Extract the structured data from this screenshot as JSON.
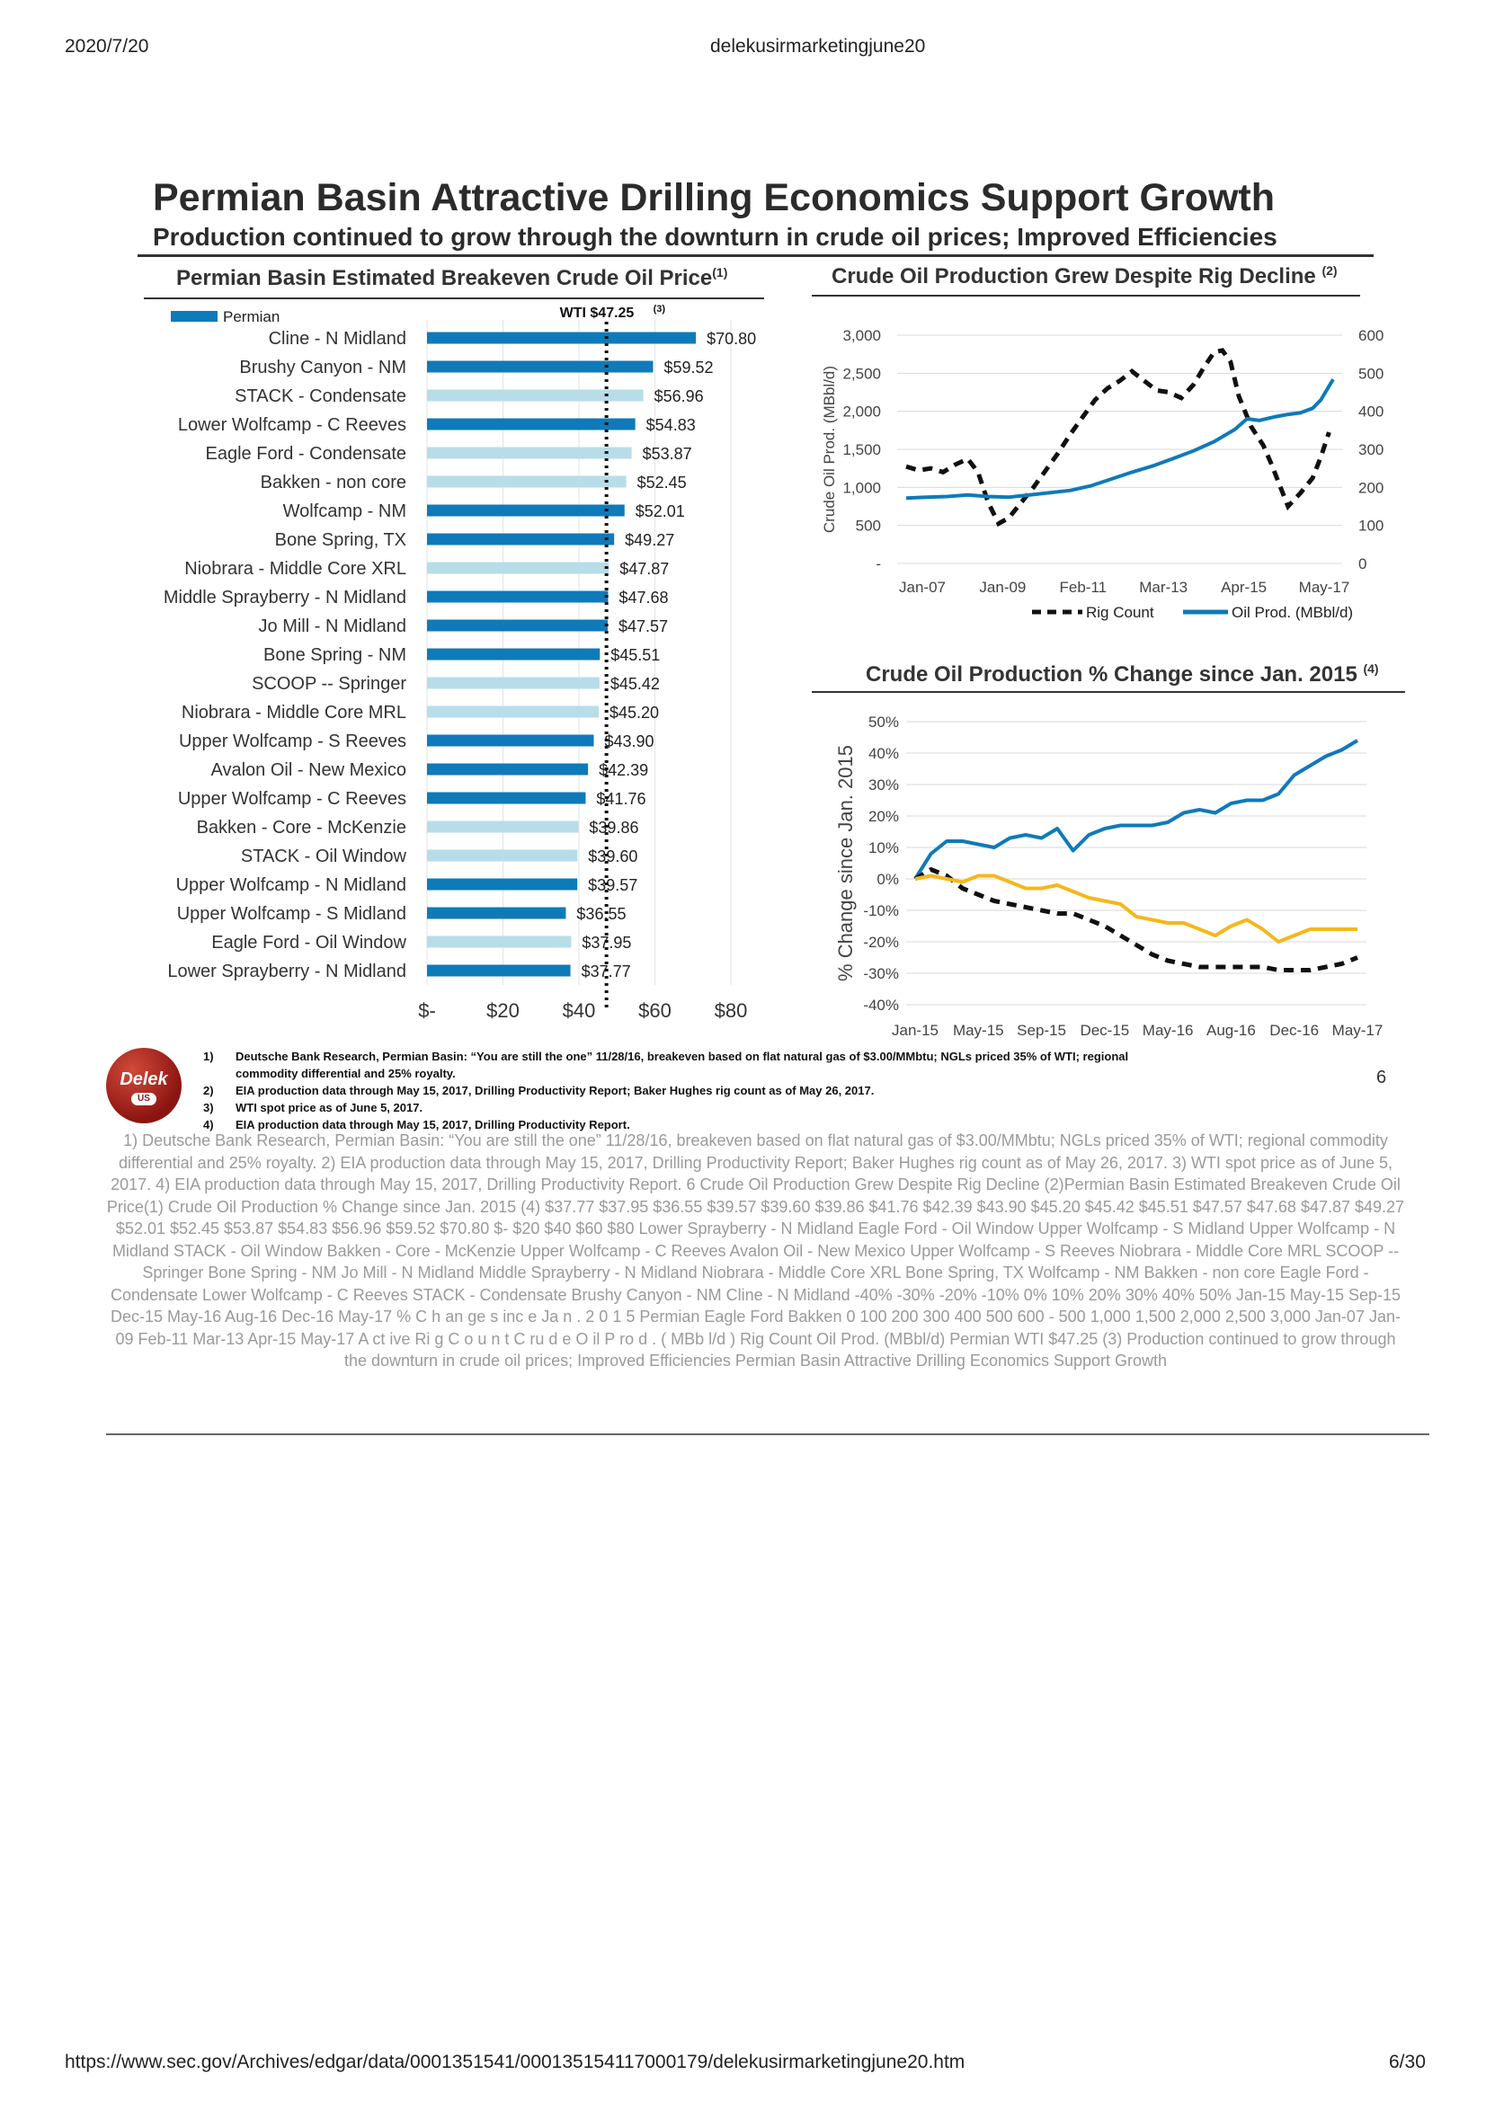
{
  "header": {
    "date": "2020/7/20",
    "doc_title": "delekusirmarketingjune20",
    "url": "https://www.sec.gov/Archives/edgar/data/0001351541/000135154117000179/delekusirmarketingjune20.htm",
    "page": "6/30"
  },
  "slide": {
    "title": "Permian Basin Attractive Drilling Economics Support Growth",
    "subtitle": "Production continued to grow through the downturn in crude oil prices; Improved Efficiencies",
    "page_number": "6",
    "logo_text": "Delek",
    "logo_badge": "US"
  },
  "colors": {
    "permian": "#0f7ab9",
    "other": "#b7dde9",
    "bakken": "#f3b81b",
    "black": "#111111",
    "grid": "#d9d9d9"
  },
  "chart_data": [
    {
      "type": "bar",
      "orientation": "horizontal",
      "title": "Permian Basin Estimated Breakeven Crude Oil Price",
      "title_sup": "(1)",
      "legend": "Permian",
      "reference_line": {
        "label": "WTI $47.25",
        "sup": "(3)",
        "value": 47.25
      },
      "xlim": [
        0,
        80
      ],
      "xticks": [
        "$-",
        "$20",
        "$40",
        "$60",
        "$80"
      ],
      "categories": [
        "Cline - N Midland",
        "Brushy Canyon - NM",
        "STACK - Condensate",
        "Lower Wolfcamp - C Reeves",
        "Eagle Ford - Condensate",
        "Bakken - non core",
        "Wolfcamp - NM",
        "Bone Spring, TX",
        "Niobrara - Middle Core XRL",
        "Middle Sprayberry - N Midland",
        "Jo Mill - N Midland",
        "Bone Spring - NM",
        "SCOOP -- Springer",
        "Niobrara - Middle Core MRL",
        "Upper Wolfcamp - S Reeves",
        "Avalon Oil - New Mexico",
        "Upper Wolfcamp - C Reeves",
        "Bakken - Core - McKenzie",
        "STACK - Oil Window",
        "Upper Wolfcamp - N Midland",
        "Upper Wolfcamp - S Midland",
        "Eagle Ford  - Oil Window",
        "Lower Sprayberry - N Midland"
      ],
      "values": [
        70.8,
        59.52,
        56.96,
        54.83,
        53.87,
        52.45,
        52.01,
        49.27,
        47.87,
        47.68,
        47.57,
        45.51,
        45.42,
        45.2,
        43.9,
        42.39,
        41.76,
        39.86,
        39.6,
        39.57,
        36.55,
        37.95,
        37.77
      ],
      "labels": [
        "$70.80",
        "$59.52",
        "$56.96",
        "$54.83",
        "$53.87",
        "$52.45",
        "$52.01",
        "$49.27",
        "$47.87",
        "$47.68",
        "$47.57",
        "$45.51",
        "$45.42",
        "$45.20",
        "$43.90",
        "$42.39",
        "$41.76",
        "$39.86",
        "$39.60",
        "$39.57",
        "$36.55",
        "$37.95",
        "$37.77"
      ],
      "is_permian": [
        true,
        true,
        false,
        true,
        false,
        false,
        true,
        true,
        false,
        true,
        true,
        true,
        false,
        false,
        true,
        true,
        true,
        false,
        false,
        true,
        true,
        false,
        true
      ]
    },
    {
      "type": "line",
      "title": "Crude Oil Production Grew Despite Rig Decline",
      "title_sup": "(2)",
      "ylabel": "Crude Oil Prod. (MBbl/d)",
      "y2label": "Active Rig Count",
      "xticks": [
        "Jan-07",
        "Jan-09",
        "Feb-11",
        "Mar-13",
        "Apr-15",
        "May-17"
      ],
      "yticks": [
        "-",
        "500",
        "1,000",
        "1,500",
        "2,000",
        "2,500",
        "3,000"
      ],
      "y2ticks": [
        "0",
        "100",
        "200",
        "300",
        "400",
        "500",
        "600"
      ],
      "ylim": [
        0,
        3000
      ],
      "y2lim": [
        0,
        600
      ],
      "xlim": [
        2007.0,
        2017.4
      ],
      "series": [
        {
          "name": "Rig Count",
          "axis": "right",
          "style": "dashed",
          "x": [
            2007.0,
            2007.3,
            2007.6,
            2007.9,
            2008.2,
            2008.5,
            2008.75,
            2009.0,
            2009.25,
            2009.5,
            2009.8,
            2010.1,
            2010.4,
            2010.7,
            2011.0,
            2011.3,
            2011.6,
            2011.9,
            2012.2,
            2012.5,
            2012.8,
            2013.1,
            2013.4,
            2013.7,
            2014.0,
            2014.25,
            2014.5,
            2014.7,
            2014.9,
            2015.1,
            2015.4,
            2015.7,
            2015.9,
            2016.1,
            2016.3,
            2016.6,
            2016.9,
            2017.1,
            2017.3
          ],
          "y": [
            255,
            245,
            250,
            240,
            260,
            275,
            240,
            160,
            105,
            120,
            160,
            200,
            245,
            290,
            340,
            385,
            430,
            460,
            480,
            505,
            480,
            455,
            450,
            435,
            470,
            515,
            555,
            560,
            530,
            440,
            360,
            310,
            260,
            205,
            150,
            185,
            225,
            280,
            345
          ]
        },
        {
          "name": "Oil Prod. (MBbl/d)",
          "axis": "left",
          "style": "solid",
          "x": [
            2007.0,
            2007.5,
            2008.0,
            2008.5,
            2009.0,
            2009.5,
            2010.0,
            2010.5,
            2011.0,
            2011.5,
            2012.0,
            2012.5,
            2013.0,
            2013.5,
            2014.0,
            2014.5,
            2015.0,
            2015.3,
            2015.6,
            2016.0,
            2016.3,
            2016.6,
            2016.9,
            2017.1,
            2017.3,
            2017.4
          ],
          "y": [
            860,
            870,
            880,
            900,
            880,
            870,
            900,
            930,
            960,
            1020,
            1110,
            1200,
            1280,
            1380,
            1480,
            1600,
            1760,
            1900,
            1880,
            1930,
            1960,
            1980,
            2040,
            2150,
            2330,
            2420
          ]
        }
      ]
    },
    {
      "type": "line",
      "title": "Crude Oil Production % Change since Jan. 2015",
      "title_sup": "(4)",
      "ylabel": "% Change since Jan. 2015",
      "xticks": [
        "Jan-15",
        "May-15",
        "Sep-15",
        "Dec-15",
        "May-16",
        "Aug-16",
        "Dec-16",
        "May-17"
      ],
      "yticks": [
        "-40%",
        "-30%",
        "-20%",
        "-10%",
        "0%",
        "10%",
        "20%",
        "30%",
        "40%",
        "50%"
      ],
      "ylim": [
        -40,
        50
      ],
      "xlim": [
        0,
        28
      ],
      "series": [
        {
          "name": "Permian",
          "style": "solid",
          "x": [
            0,
            1,
            2,
            3,
            4,
            5,
            6,
            7,
            8,
            9,
            10,
            11,
            12,
            13,
            14,
            15,
            16,
            17,
            18,
            19,
            20,
            21,
            22,
            23,
            24,
            25,
            26,
            27,
            28
          ],
          "y": [
            0,
            8,
            12,
            12,
            11,
            10,
            13,
            14,
            13,
            16,
            9,
            14,
            16,
            17,
            17,
            17,
            18,
            21,
            22,
            21,
            24,
            25,
            25,
            27,
            33,
            36,
            39,
            41,
            44
          ]
        },
        {
          "name": "Eagle Ford",
          "style": "dashed",
          "x": [
            0,
            1,
            2,
            3,
            4,
            5,
            6,
            7,
            8,
            9,
            10,
            11,
            12,
            13,
            14,
            15,
            16,
            17,
            18,
            19,
            20,
            21,
            22,
            23,
            24,
            25,
            26,
            27,
            28
          ],
          "y": [
            0,
            3,
            1,
            -3,
            -5,
            -7,
            -8,
            -9,
            -10,
            -11,
            -11,
            -13,
            -15,
            -18,
            -21,
            -24,
            -26,
            -27,
            -28,
            -28,
            -28,
            -28,
            -28,
            -29,
            -29,
            -29,
            -28,
            -27,
            -25
          ]
        },
        {
          "name": "Bakken",
          "style": "solid",
          "x": [
            0,
            1,
            2,
            3,
            4,
            5,
            6,
            7,
            8,
            9,
            10,
            11,
            12,
            13,
            14,
            15,
            16,
            17,
            18,
            19,
            20,
            21,
            22,
            23,
            24,
            25,
            26,
            27,
            28
          ],
          "y": [
            0,
            1,
            0,
            -1,
            1,
            1,
            -1,
            -3,
            -3,
            -2,
            -4,
            -6,
            -7,
            -8,
            -12,
            -13,
            -14,
            -14,
            -16,
            -18,
            -15,
            -13,
            -16,
            -20,
            -18,
            -16,
            -16,
            -16,
            -16
          ]
        }
      ]
    }
  ],
  "footnotes": [
    {
      "num": "1)",
      "text": "Deutsche Bank Research, Permian Basin: “You are still the one” 11/28/16, breakeven based on flat natural gas of $3.00/MMbtu; NGLs priced 35% of WTI; regional"
    },
    {
      "num": "",
      "text": "commodity differential and 25% royalty."
    },
    {
      "num": "2)",
      "text": "EIA production data through May 15, 2017, Drilling Productivity Report; Baker Hughes rig count as of May 26, 2017."
    },
    {
      "num": "3)",
      "text": "WTI spot price as of June 5, 2017."
    },
    {
      "num": "4)",
      "text": "EIA production data through May 15, 2017, Drilling Productivity Report."
    }
  ],
  "extracted_text": "1) Deutsche Bank Research, Permian Basin: “You are still the one” 11/28/16, breakeven based on flat natural gas of $3.00/MMbtu; NGLs priced 35% of WTI; regional commodity differential and 25% royalty. 2) EIA production data through May 15, 2017, Drilling Productivity Report; Baker Hughes rig count as of May 26, 2017. 3) WTI spot price as of June 5, 2017. 4) EIA production data through May 15, 2017, Drilling Productivity Report. 6 Crude Oil Production Grew Despite Rig Decline (2)Permian Basin Estimated Breakeven Crude Oil Price(1) Crude Oil Production % Change since Jan. 2015 (4) $37.77 $37.95 $36.55 $39.57 $39.60 $39.86 $41.76 $42.39 $43.90 $45.20 $45.42 $45.51 $47.57 $47.68 $47.87 $49.27 $52.01 $52.45 $53.87 $54.83 $56.96 $59.52 $70.80 $- $20 $40 $60 $80 Lower Sprayberry - N Midland Eagle Ford - Oil Window Upper Wolfcamp - S Midland Upper Wolfcamp - N Midland STACK - Oil Window Bakken - Core - McKenzie Upper Wolfcamp - C Reeves Avalon Oil - New Mexico Upper Wolfcamp - S Reeves Niobrara - Middle Core MRL SCOOP -- Springer Bone Spring - NM Jo Mill - N Midland Middle Sprayberry - N Midland Niobrara - Middle Core XRL Bone Spring, TX Wolfcamp - NM Bakken - non core Eagle Ford - Condensate Lower Wolfcamp - C Reeves STACK - Condensate Brushy Canyon - NM Cline - N Midland -40% -30% -20% -10% 0% 10% 20% 30% 40% 50% Jan-15 May-15 Sep-15 Dec-15 May-16 Aug-16 Dec-16 May-17 % C h an ge s inc e Ja n . 2 0 1 5 Permian Eagle Ford Bakken 0 100 200 300 400 500 600 - 500 1,000 1,500 2,000 2,500 3,000 Jan-07 Jan-09 Feb-11 Mar-13 Apr-15 May-17 A ct ive Ri g C o u n t C ru d e O il P ro d . ( MBb l/d ) Rig Count Oil Prod. (MBbl/d) Permian WTI $47.25 (3) Production continued to grow through the downturn in crude oil prices; Improved Efficiencies Permian Basin Attractive Drilling Economics Support Growth"
}
